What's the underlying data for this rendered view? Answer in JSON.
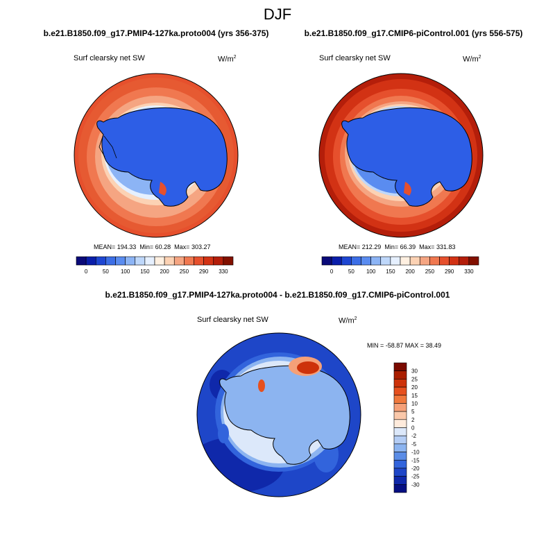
{
  "season": "DJF",
  "panels": [
    {
      "case": "b.e21.B1850.f09_g17.PMIP4-127ka.proto004 (yrs 356-375)",
      "variable": "Surf clearsky net SW",
      "units_base": "W/m",
      "units_exp": "2",
      "mean_label": "MEAN=",
      "mean": "194.33",
      "min_label": "Min=",
      "min": "60.28",
      "max_label": "Max=",
      "max": "303.27"
    },
    {
      "case": "b.e21.B1850.f09_g17.CMIP6-piControl.001 (yrs 556-575)",
      "variable": "Surf clearsky net SW",
      "units_base": "W/m",
      "units_exp": "2",
      "mean_label": "MEAN=",
      "mean": "212.29",
      "min_label": "Min=",
      "min": "66.39",
      "max_label": "Max=",
      "max": "331.83"
    }
  ],
  "abs_colorbar": {
    "labels": [
      "0",
      "50",
      "100",
      "150",
      "200",
      "250",
      "290",
      "330"
    ],
    "colors": [
      "#0a0a78",
      "#0a1eaa",
      "#1e46d2",
      "#3c6ee6",
      "#5a8cf0",
      "#8cb4f5",
      "#bed7fa",
      "#e6f0ff",
      "#fff0e1",
      "#fcd2b4",
      "#f5a582",
      "#f07850",
      "#e6502d",
      "#d23214",
      "#b41e0a",
      "#821000"
    ]
  },
  "difference": {
    "title": "b.e21.B1850.f09_g17.PMIP4-127ka.proto004 - b.e21.B1850.f09_g17.CMIP6-piControl.001",
    "variable": "Surf clearsky net SW",
    "units_base": "W/m",
    "units_exp": "2",
    "minmax": "MIN = -58.87 MAX =  38.49",
    "colorbar_labels": [
      "30",
      "25",
      "20",
      "15",
      "10",
      "5",
      "2",
      "0",
      "-2",
      "-5",
      "-10",
      "-15",
      "-20",
      "-25",
      "-30"
    ],
    "colorbar_colors": [
      "#7a0a00",
      "#aa1e00",
      "#cd320a",
      "#e6501e",
      "#f0783c",
      "#f5a078",
      "#fac8aa",
      "#ffebdc",
      "#dce8fa",
      "#b4cdf5",
      "#8cb4f0",
      "#5a8ce6",
      "#3264dc",
      "#1e46c8",
      "#0f28aa",
      "#050f82"
    ]
  }
}
